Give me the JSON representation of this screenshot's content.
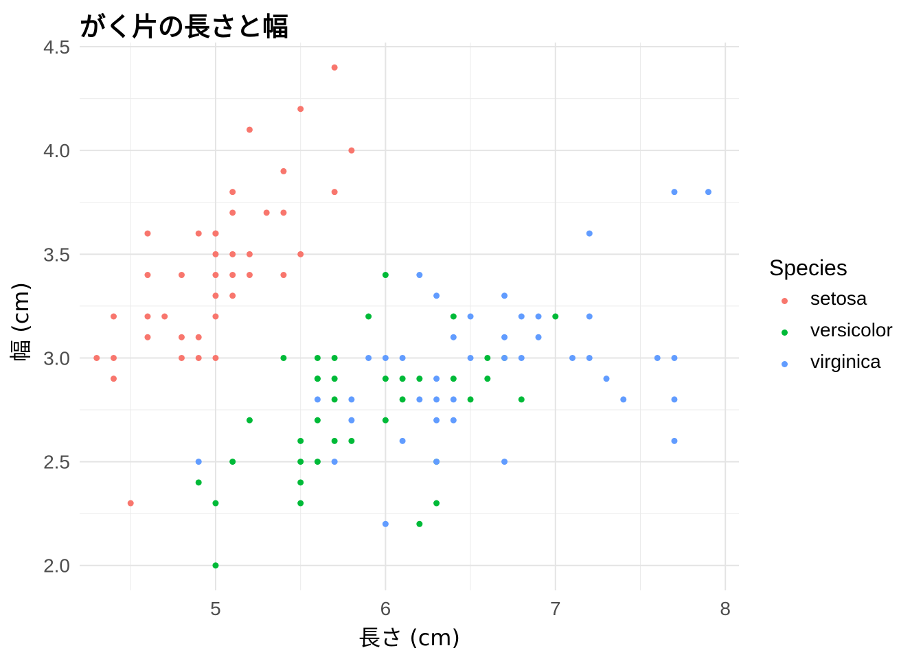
{
  "chart_data": {
    "type": "scatter",
    "title": "がく片の長さと幅",
    "xlabel": "長さ (cm)",
    "ylabel": "幅 (cm)",
    "xlim": [
      4.2,
      8.08
    ],
    "ylim": [
      1.88,
      4.52
    ],
    "x_ticks": [
      "5",
      "6",
      "7",
      "8"
    ],
    "y_ticks": [
      "2.0",
      "2.5",
      "3.0",
      "3.5",
      "4.0",
      "4.5"
    ],
    "grid": true,
    "legend": {
      "title": "Species",
      "position": "right"
    },
    "series": [
      {
        "name": "setosa",
        "color": "#F8766D",
        "x": [
          4.3,
          4.4,
          4.4,
          4.4,
          4.5,
          4.6,
          4.6,
          4.6,
          4.6,
          4.7,
          4.8,
          4.8,
          4.8,
          4.9,
          4.9,
          4.9,
          5.0,
          5.0,
          5.0,
          5.0,
          5.0,
          5.0,
          5.0,
          5.1,
          5.1,
          5.1,
          5.1,
          5.1,
          5.2,
          5.2,
          5.2,
          5.3,
          5.4,
          5.4,
          5.4,
          5.5,
          5.5,
          5.7,
          5.7,
          5.8
        ],
        "y": [
          3.0,
          2.9,
          3.0,
          3.2,
          2.3,
          3.1,
          3.2,
          3.4,
          3.6,
          3.2,
          3.0,
          3.1,
          3.4,
          3.0,
          3.1,
          3.6,
          3.0,
          3.2,
          3.3,
          3.4,
          3.5,
          3.6,
          3.6,
          3.3,
          3.4,
          3.5,
          3.7,
          3.8,
          3.4,
          3.5,
          4.1,
          3.7,
          3.4,
          3.7,
          3.9,
          3.5,
          4.2,
          3.8,
          4.4,
          4.0
        ]
      },
      {
        "name": "versicolor",
        "color": "#00BA38",
        "x": [
          4.9,
          5.0,
          5.0,
          5.1,
          5.2,
          5.4,
          5.5,
          5.5,
          5.5,
          5.5,
          5.6,
          5.6,
          5.6,
          5.6,
          5.6,
          5.7,
          5.7,
          5.7,
          5.7,
          5.8,
          5.9,
          6.0,
          6.0,
          6.0,
          6.1,
          6.1,
          6.2,
          6.2,
          6.3,
          6.3,
          6.4,
          6.4,
          6.5,
          6.6,
          6.6,
          6.7,
          6.8,
          7.0
        ],
        "y": [
          2.4,
          2.0,
          2.3,
          2.5,
          2.7,
          3.0,
          2.3,
          2.4,
          2.5,
          2.6,
          2.5,
          2.7,
          2.9,
          3.0,
          2.9,
          2.6,
          2.8,
          2.9,
          3.0,
          2.6,
          3.2,
          2.7,
          2.9,
          3.4,
          2.8,
          2.9,
          2.2,
          2.9,
          2.3,
          2.5,
          2.9,
          3.2,
          2.8,
          2.9,
          3.0,
          3.0,
          2.8,
          3.2
        ]
      },
      {
        "name": "virginica",
        "color": "#619CFF",
        "x": [
          4.9,
          5.6,
          5.7,
          5.8,
          5.8,
          5.9,
          6.0,
          6.0,
          6.1,
          6.1,
          6.2,
          6.2,
          6.3,
          6.3,
          6.3,
          6.3,
          6.3,
          6.4,
          6.4,
          6.4,
          6.5,
          6.5,
          6.7,
          6.7,
          6.7,
          6.7,
          6.8,
          6.8,
          6.9,
          6.9,
          7.1,
          7.2,
          7.2,
          7.2,
          7.3,
          7.4,
          7.6,
          7.7,
          7.7,
          7.7,
          7.7,
          7.9
        ],
        "y": [
          2.5,
          2.8,
          2.5,
          2.7,
          2.8,
          3.0,
          2.2,
          3.0,
          2.6,
          3.0,
          2.8,
          3.4,
          2.5,
          2.7,
          2.8,
          2.9,
          3.3,
          2.7,
          2.8,
          3.1,
          3.0,
          3.2,
          2.5,
          3.0,
          3.1,
          3.3,
          3.0,
          3.2,
          3.1,
          3.2,
          3.0,
          3.0,
          3.2,
          3.6,
          2.9,
          2.8,
          3.0,
          2.6,
          2.8,
          3.0,
          3.8,
          3.8
        ]
      }
    ]
  }
}
